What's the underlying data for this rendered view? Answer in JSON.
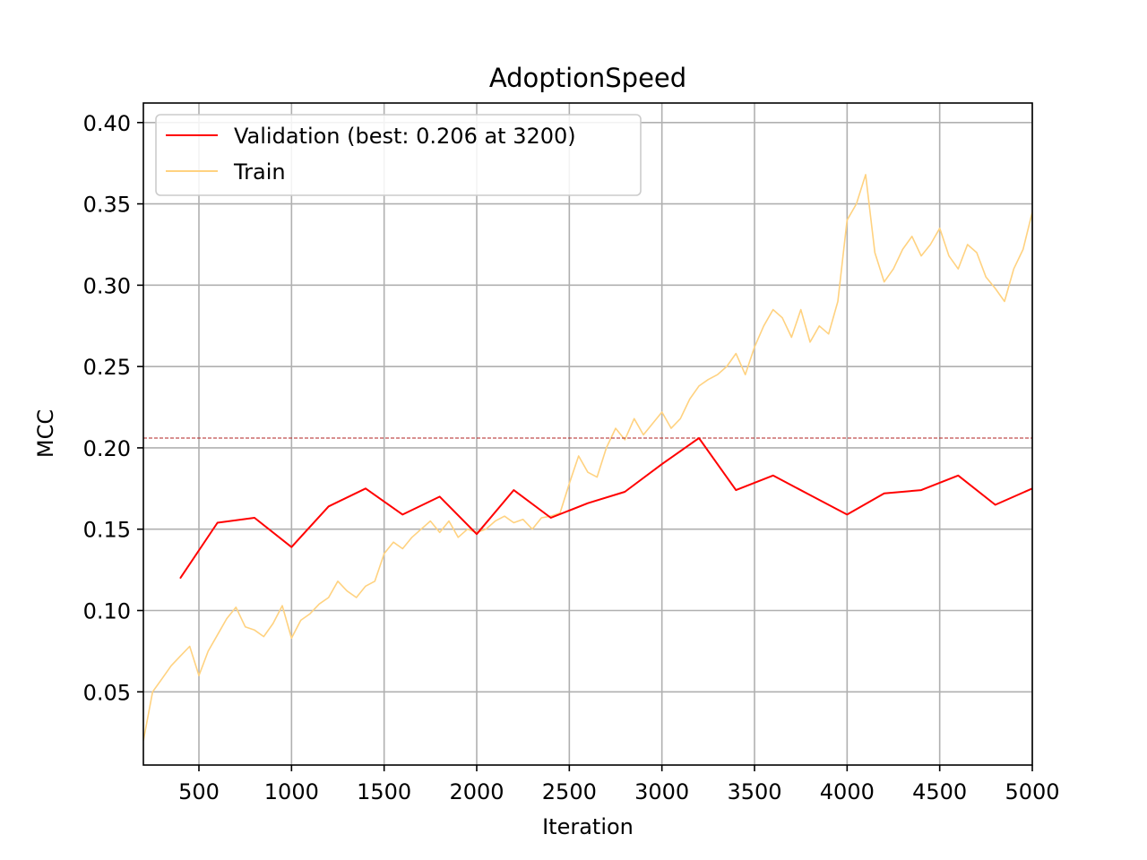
{
  "chart_data": {
    "type": "line",
    "title": "AdoptionSpeed",
    "xlabel": "Iteration",
    "ylabel": "MCC",
    "xlim": [
      200,
      5000
    ],
    "ylim": [
      0.005,
      0.412
    ],
    "xticks": [
      500,
      1000,
      1500,
      2000,
      2500,
      3000,
      3500,
      4000,
      4500,
      5000
    ],
    "yticks": [
      0.05,
      0.1,
      0.15,
      0.2,
      0.25,
      0.3,
      0.35,
      0.4
    ],
    "xtick_labels": [
      "500",
      "1000",
      "1500",
      "2000",
      "2500",
      "3000",
      "3500",
      "4000",
      "4500",
      "5000"
    ],
    "ytick_labels": [
      "0.05",
      "0.10",
      "0.15",
      "0.20",
      "0.25",
      "0.30",
      "0.35",
      "0.40"
    ],
    "grid": true,
    "legend_position": "top-left",
    "best_line": {
      "y": 0.206,
      "color": "#b22222"
    },
    "series": [
      {
        "name": "Validation (best: 0.206 at 3200)",
        "color": "#ff0000",
        "x": [
          400,
          600,
          800,
          1000,
          1200,
          1400,
          1600,
          1800,
          2000,
          2200,
          2400,
          2600,
          2800,
          3000,
          3200,
          3400,
          3600,
          3800,
          4000,
          4200,
          4400,
          4600,
          4800,
          5000
        ],
        "y": [
          0.12,
          0.154,
          0.157,
          0.139,
          0.164,
          0.175,
          0.159,
          0.17,
          0.147,
          0.174,
          0.157,
          0.166,
          0.173,
          0.19,
          0.206,
          0.174,
          0.183,
          0.171,
          0.159,
          0.172,
          0.174,
          0.183,
          0.165,
          0.175
        ]
      },
      {
        "name": "Train",
        "color": "#ffd280",
        "x": [
          200,
          250,
          300,
          350,
          400,
          450,
          500,
          550,
          600,
          650,
          700,
          750,
          800,
          850,
          900,
          950,
          1000,
          1050,
          1100,
          1150,
          1200,
          1250,
          1300,
          1350,
          1400,
          1450,
          1500,
          1550,
          1600,
          1650,
          1700,
          1750,
          1800,
          1850,
          1900,
          1950,
          2000,
          2050,
          2100,
          2150,
          2200,
          2250,
          2300,
          2350,
          2400,
          2450,
          2500,
          2550,
          2600,
          2650,
          2700,
          2750,
          2800,
          2850,
          2900,
          2950,
          3000,
          3050,
          3100,
          3150,
          3200,
          3250,
          3300,
          3350,
          3400,
          3450,
          3500,
          3550,
          3600,
          3650,
          3700,
          3750,
          3800,
          3850,
          3900,
          3950,
          4000,
          4050,
          4100,
          4150,
          4200,
          4250,
          4300,
          4350,
          4400,
          4450,
          4500,
          4550,
          4600,
          4650,
          4700,
          4750,
          4800,
          4850,
          4900,
          4950,
          5000
        ],
        "y": [
          0.02,
          0.05,
          0.058,
          0.066,
          0.072,
          0.078,
          0.06,
          0.075,
          0.085,
          0.095,
          0.102,
          0.09,
          0.088,
          0.084,
          0.092,
          0.103,
          0.083,
          0.094,
          0.098,
          0.104,
          0.108,
          0.118,
          0.112,
          0.108,
          0.115,
          0.118,
          0.135,
          0.142,
          0.138,
          0.145,
          0.15,
          0.155,
          0.148,
          0.155,
          0.145,
          0.15,
          0.148,
          0.15,
          0.155,
          0.158,
          0.154,
          0.156,
          0.15,
          0.157,
          0.158,
          0.16,
          0.178,
          0.195,
          0.185,
          0.182,
          0.2,
          0.212,
          0.205,
          0.218,
          0.208,
          0.215,
          0.222,
          0.212,
          0.218,
          0.23,
          0.238,
          0.242,
          0.245,
          0.25,
          0.258,
          0.245,
          0.262,
          0.275,
          0.285,
          0.28,
          0.268,
          0.285,
          0.265,
          0.275,
          0.27,
          0.29,
          0.34,
          0.35,
          0.368,
          0.32,
          0.302,
          0.31,
          0.322,
          0.33,
          0.318,
          0.325,
          0.335,
          0.318,
          0.31,
          0.325,
          0.32,
          0.305,
          0.298,
          0.29,
          0.31,
          0.322,
          0.345
        ]
      }
    ]
  }
}
